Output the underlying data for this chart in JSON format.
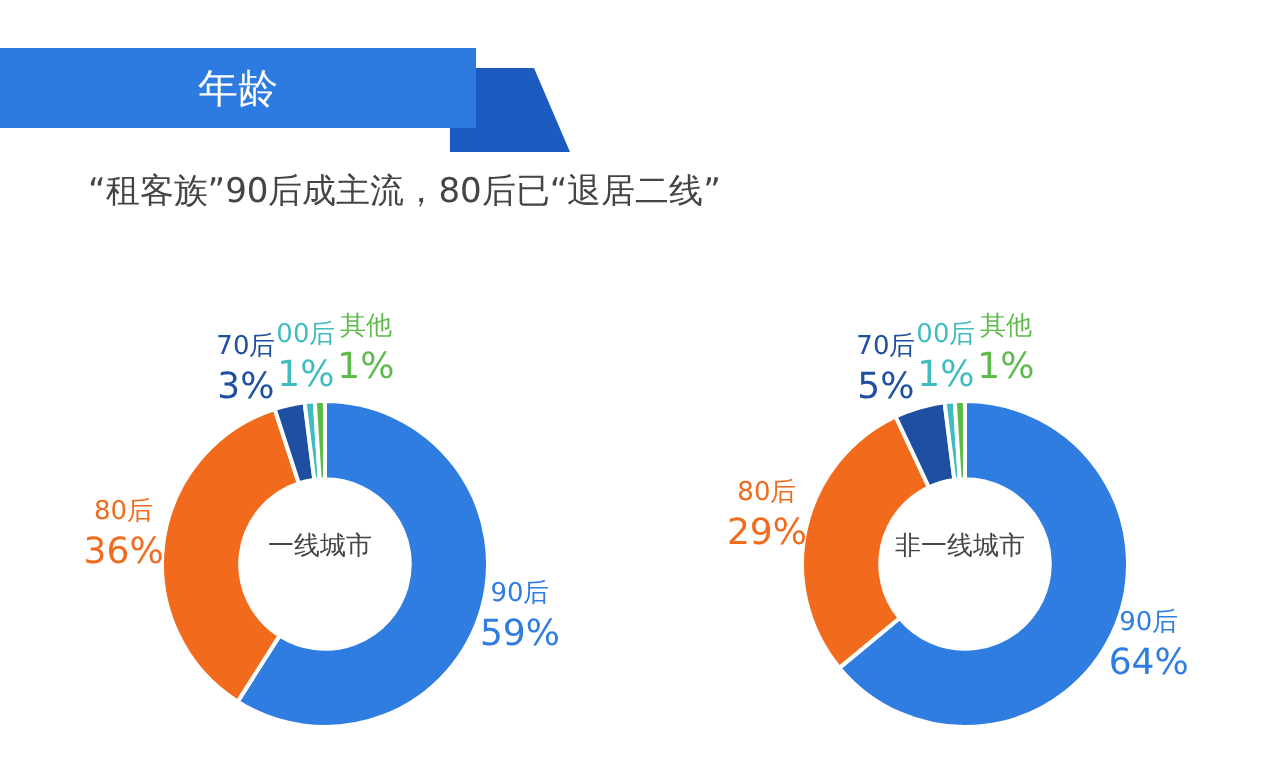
{
  "chart_data": [
    {
      "type": "donut",
      "title": "一线城市",
      "annotations": [
        "年龄",
        "“租客族”90后成主流，80后已“退居二线”"
      ],
      "categories": [
        "90后",
        "80后",
        "70后",
        "00后",
        "其他"
      ],
      "values": [
        59,
        36,
        3,
        1,
        1
      ],
      "value_labels": [
        "59%",
        "36%",
        "3%",
        "1%",
        "1%"
      ],
      "colors": [
        "#2f7de1",
        "#f26b1d",
        "#1f4fa0",
        "#3fbcc0",
        "#5dbb4a"
      ],
      "legend": false
    },
    {
      "type": "donut",
      "title": "非一线城市",
      "categories": [
        "90后",
        "80后",
        "70后",
        "00后",
        "其他"
      ],
      "values": [
        64,
        29,
        5,
        1,
        1
      ],
      "value_labels": [
        "64%",
        "29%",
        "5%",
        "1%",
        "1%"
      ],
      "colors": [
        "#2f7de1",
        "#f26b1d",
        "#1f4fa0",
        "#3fbcc0",
        "#5dbb4a"
      ],
      "legend": false
    }
  ]
}
